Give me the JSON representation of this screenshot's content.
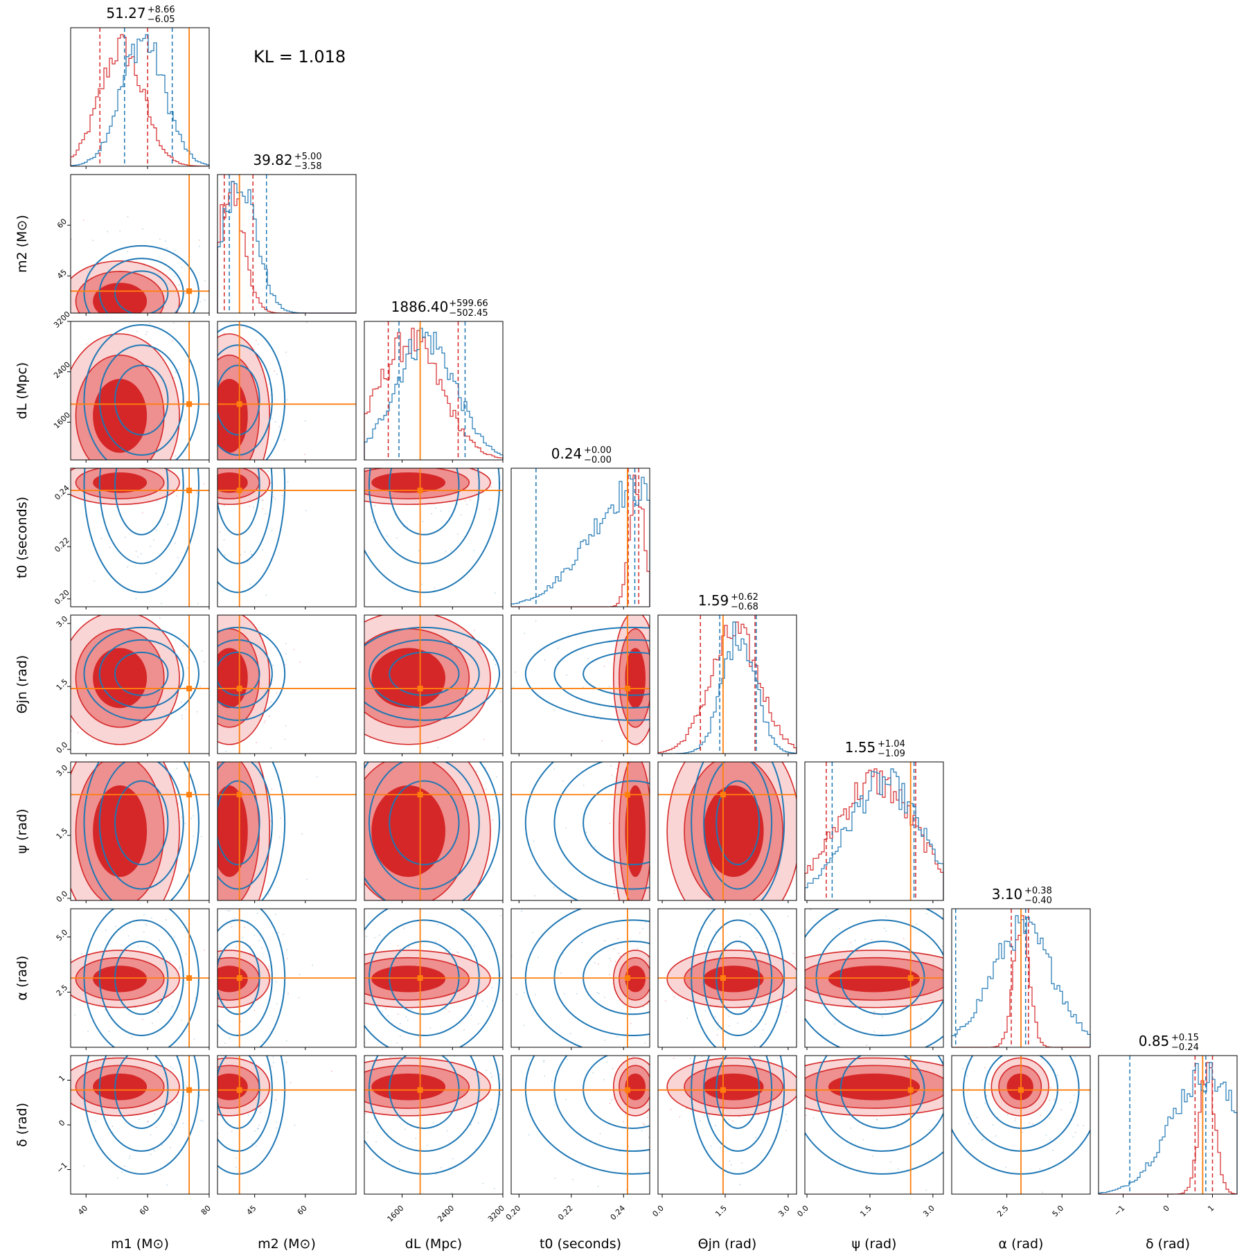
{
  "chart_data": {
    "type": "corner",
    "annotation": "KL = 1.018",
    "colors": {
      "series_a": "#d62728",
      "series_b": "#1f77b4",
      "truth": "#ff7f0e"
    },
    "parameters": [
      {
        "key": "m1",
        "label": "m1 (M⊙)",
        "ticks": [
          40,
          60,
          80
        ],
        "tick_labels": [
          "40",
          "60",
          "80"
        ],
        "range": [
          35,
          80
        ],
        "truth": 73.5,
        "median": "51.27",
        "plus": "+8.66",
        "minus": "−6.05",
        "lines_red": [
          44.5,
          60.0
        ],
        "lines_blue": [
          52.5,
          68.0
        ],
        "mode_red": 51.0,
        "mode_blue": 58.0
      },
      {
        "key": "m2",
        "label": "m2 (M⊙)",
        "ticks": [
          45,
          60
        ],
        "tick_labels": [
          "45",
          "60"
        ],
        "range": [
          34,
          75
        ],
        "truth": 40.5,
        "median": "39.82",
        "plus": "+5.00",
        "minus": "−3.58",
        "lines_red": [
          36.0,
          44.5
        ],
        "lines_blue": [
          37.5,
          48.5
        ],
        "mode_red": 37.5,
        "mode_blue": 40.0
      },
      {
        "key": "dL",
        "label": "dL (Mpc)",
        "ticks": [
          1600,
          2400,
          3200
        ],
        "tick_labels": [
          "1600",
          "2400",
          "3200"
        ],
        "range": [
          1000,
          3200
        ],
        "truth": 1886.4,
        "median": "1886.40",
        "plus": "+599.66",
        "minus": "−502.45",
        "lines_red": [
          1380,
          2490
        ],
        "lines_blue": [
          1550,
          2600
        ],
        "mode_red": 1700,
        "mode_blue": 1950
      },
      {
        "key": "t0",
        "label": "t0 (seconds)",
        "ticks": [
          0.2,
          0.22,
          0.24
        ],
        "tick_labels": [
          "0.20",
          "0.22",
          "0.24"
        ],
        "range": [
          0.197,
          0.25
        ],
        "truth": 0.2415,
        "median": "0.24",
        "plus": "+0.00",
        "minus": "−0.00",
        "lines_red": [
          0.2418,
          0.2458
        ],
        "lines_blue": [
          0.2065,
          0.2443
        ],
        "mode_red": 0.2445,
        "mode_blue": 0.2435
      },
      {
        "key": "theta_jn",
        "label": "Θjn (rad)",
        "ticks": [
          0.0,
          1.5,
          3.0
        ],
        "tick_labels": [
          "0.0",
          "1.5",
          "3.0"
        ],
        "range": [
          -0.1,
          3.2
        ],
        "truth": 1.45,
        "median": "1.59",
        "plus": "+0.62",
        "minus": "−0.68",
        "lines_red": [
          0.91,
          2.21
        ],
        "lines_blue": [
          1.37,
          2.24
        ],
        "mode_red": 1.7,
        "mode_blue": 1.8
      },
      {
        "key": "psi",
        "label": "ψ (rad)",
        "ticks": [
          0.0,
          1.5,
          3.0
        ],
        "tick_labels": [
          "0.0",
          "1.5",
          "3.0"
        ],
        "range": [
          -0.05,
          3.25
        ],
        "truth": 2.47,
        "median": "1.55",
        "plus": "+1.04",
        "minus": "−1.09",
        "lines_red": [
          0.46,
          2.59
        ],
        "lines_blue": [
          0.6,
          2.55
        ],
        "mode_red": 1.6,
        "mode_blue": 1.8
      },
      {
        "key": "alpha",
        "label": "α (rad)",
        "ticks": [
          2.5,
          5.0
        ],
        "tick_labels": [
          "2.5",
          "5.0"
        ],
        "range": [
          0.0,
          6.28
        ],
        "truth": 3.14,
        "median": "3.10",
        "plus": "+0.38",
        "minus": "−0.40",
        "lines_red": [
          2.7,
          3.48
        ],
        "lines_blue": [
          0.18,
          3.35
        ],
        "mode_red": 3.1,
        "mode_blue": 3.15
      },
      {
        "key": "delta",
        "label": "δ (rad)",
        "ticks": [
          -1,
          0,
          1
        ],
        "tick_labels": [
          "−1",
          "0",
          "1"
        ],
        "range": [
          -1.55,
          1.55
        ],
        "truth": 0.78,
        "median": "0.85",
        "plus": "+0.15",
        "minus": "−0.24",
        "lines_red": [
          0.61,
          1.0
        ],
        "lines_blue": [
          -0.85,
          0.85
        ],
        "mode_red": 0.85,
        "mode_blue": 0.8
      }
    ]
  }
}
